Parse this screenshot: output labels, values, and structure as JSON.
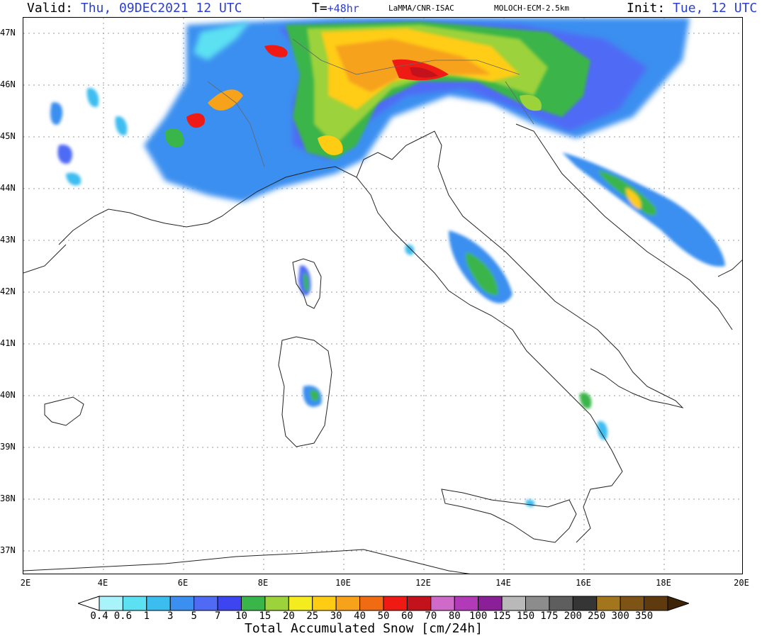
{
  "header": {
    "valid_label": "Valid:",
    "valid_value": "Thu, 09DEC2021   12 UTC",
    "t_label": "T=",
    "t_value": "+48hr",
    "institution": "LaMMA/CNR-ISAC",
    "model": "MOLOCH-ECM-2.5km",
    "init_label": "Init:",
    "init_value": "Tue, 12 UTC"
  },
  "axes": {
    "lat_labels": [
      "47N",
      "46N",
      "45N",
      "44N",
      "43N",
      "42N",
      "41N",
      "40N",
      "39N",
      "38N",
      "37N"
    ],
    "lon_labels": [
      "2E",
      "4E",
      "6E",
      "8E",
      "10E",
      "12E",
      "14E",
      "16E",
      "18E",
      "20E"
    ]
  },
  "colorbar": {
    "values": [
      "0.4",
      "0.6",
      "1",
      "3",
      "5",
      "7",
      "10",
      "15",
      "20",
      "25",
      "30",
      "40",
      "50",
      "60",
      "70",
      "80",
      "100",
      "125",
      "150",
      "175",
      "200",
      "250",
      "300",
      "350"
    ],
    "colors": [
      "#ffffff",
      "#a8f4fa",
      "#5ce1f2",
      "#3cbdf0",
      "#3a8ff0",
      "#4f6af5",
      "#3d45f0",
      "#3ab54a",
      "#9cd23a",
      "#f4ec1e",
      "#ffcc14",
      "#f7a21b",
      "#f06b12",
      "#f01a14",
      "#c4121c",
      "#d06ac8",
      "#b23ab8",
      "#8a1f98",
      "#b9b9b9",
      "#8c8c8c",
      "#5e5e5e",
      "#353535",
      "#a3761e",
      "#7d5415",
      "#5e3a0e",
      "#3d2407"
    ]
  },
  "bottom_title": "Total Accumulated Snow [cm/24h]"
}
